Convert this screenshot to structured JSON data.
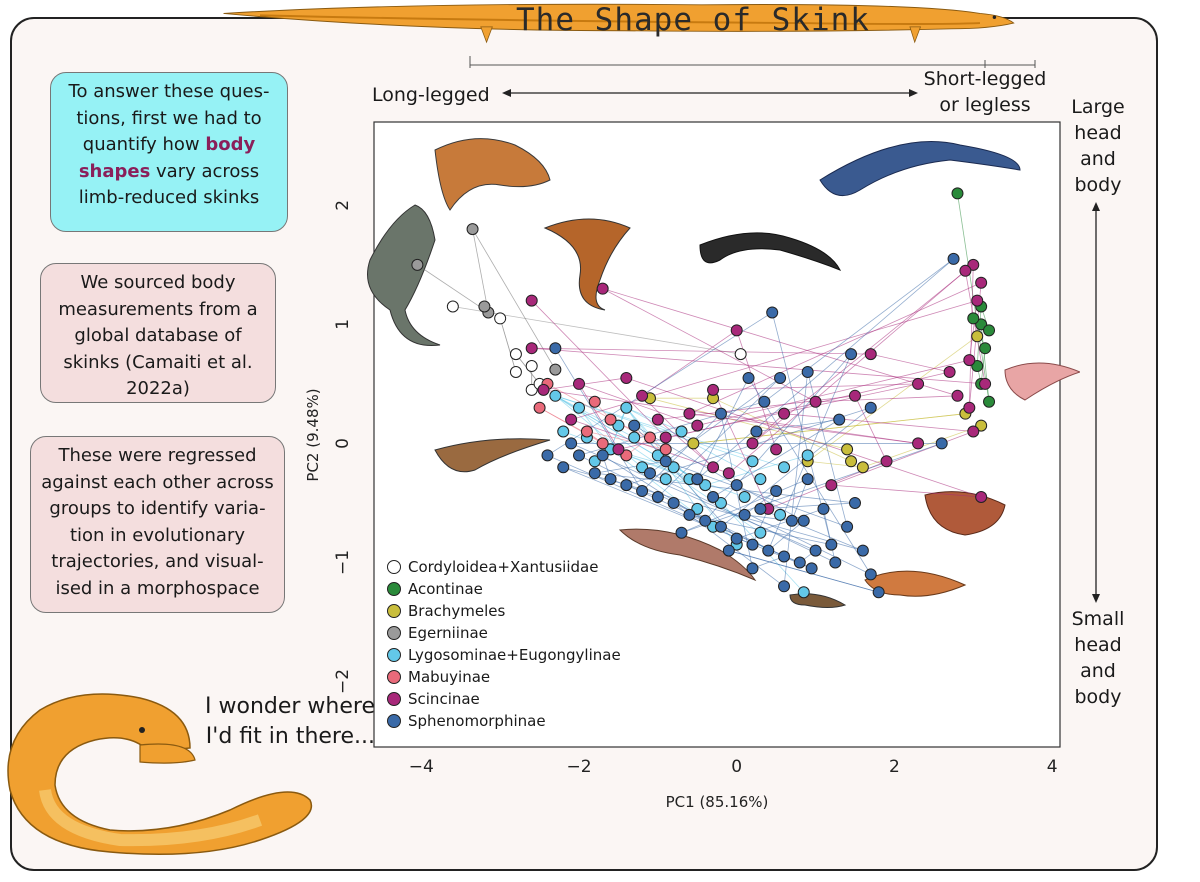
{
  "title": "The Shape of Skink",
  "boxes": {
    "intro_before": "To answer these ques-tions, first we had to quantify how ",
    "intro_highlight": "body shapes",
    "intro_after": " vary across limb-reduced skinks",
    "sourced": "We sourced body measurements from a global database of skinks (Camaiti et al. 2022a)",
    "regressed": "These were regressed against each other across groups to identify varia-tion in evolutionary trajectories, and visual-ised in a morphospace"
  },
  "labels": {
    "long_legged": "Long-legged",
    "short_legged_1": "Short-legged",
    "short_legged_2": "or legless",
    "large_1": "Large",
    "large_2": "head",
    "large_3": "and",
    "large_4": "body",
    "small_1": "Small",
    "small_2": "head",
    "small_3": "and",
    "small_4": "body",
    "wonder_1": "I wonder where",
    "wonder_2": "I'd fit in there..."
  },
  "colors": {
    "panel_bg": "#fbf6f4",
    "snake_body": "#f0a030",
    "snake_belly": "#f5c060",
    "box_cyan": "#96f2f5",
    "box_pink": "#f4dede",
    "highlight": "#8a1f5a"
  },
  "chart_data": {
    "type": "scatter",
    "title": "",
    "xlabel": "PC1 (85.16%)",
    "ylabel": "PC2 (9.48%)",
    "xlim": [
      -4.6,
      4.1
    ],
    "ylim": [
      -2.55,
      2.7
    ],
    "xticks": [
      -4,
      -2,
      0,
      2,
      4
    ],
    "yticks": [
      -2,
      -1,
      0,
      1,
      2
    ],
    "legend_position": "bottom-left",
    "series": [
      {
        "name": "Cordyloidea+Xantusiidae",
        "color": "#ffffff",
        "points": [
          [
            -3.6,
            1.15
          ],
          [
            -2.8,
            0.75
          ],
          [
            -2.8,
            0.6
          ],
          [
            -2.6,
            0.45
          ],
          [
            -2.6,
            0.65
          ],
          [
            -3.0,
            1.05
          ],
          [
            -2.5,
            0.5
          ],
          [
            0.05,
            0.75
          ]
        ]
      },
      {
        "name": "Acontinae",
        "color": "#2a8a3a",
        "points": [
          [
            2.8,
            2.1
          ],
          [
            3.1,
            1.15
          ],
          [
            3.1,
            1.0
          ],
          [
            3.2,
            0.95
          ],
          [
            3.15,
            0.8
          ],
          [
            3.05,
            0.65
          ],
          [
            3.1,
            0.5
          ],
          [
            3.2,
            0.35
          ],
          [
            3.0,
            1.05
          ]
        ]
      },
      {
        "name": "Brachymeles",
        "color": "#c9be3c",
        "points": [
          [
            3.05,
            0.9
          ],
          [
            -1.1,
            0.38
          ],
          [
            -0.3,
            0.38
          ],
          [
            -0.55,
            0.0
          ],
          [
            1.4,
            -0.05
          ],
          [
            1.45,
            -0.15
          ],
          [
            1.6,
            -0.2
          ],
          [
            0.9,
            -0.15
          ],
          [
            2.9,
            0.25
          ],
          [
            3.1,
            0.15
          ]
        ]
      },
      {
        "name": "Egerniinae",
        "color": "#9a9a9a",
        "points": [
          [
            -4.05,
            1.5
          ],
          [
            -3.35,
            1.8
          ],
          [
            -3.15,
            1.1
          ],
          [
            -3.2,
            1.15
          ],
          [
            -2.3,
            0.62
          ]
        ]
      },
      {
        "name": "Lygosominae+Eugongylinae",
        "color": "#63c8e8",
        "points": [
          [
            -2.3,
            0.4
          ],
          [
            -2.0,
            0.3
          ],
          [
            -1.5,
            0.15
          ],
          [
            -1.3,
            0.05
          ],
          [
            -1.0,
            -0.1
          ],
          [
            -0.8,
            -0.2
          ],
          [
            -0.6,
            -0.3
          ],
          [
            -0.4,
            -0.35
          ],
          [
            -0.2,
            -0.5
          ],
          [
            0.1,
            -0.45
          ],
          [
            0.3,
            -0.3
          ],
          [
            0.6,
            -0.2
          ],
          [
            0.9,
            -0.1
          ],
          [
            -1.8,
            -0.15
          ],
          [
            -1.6,
            -0.05
          ],
          [
            -1.2,
            -0.2
          ],
          [
            -0.9,
            -0.3
          ],
          [
            -0.3,
            -0.7
          ],
          [
            0.0,
            -0.85
          ],
          [
            0.3,
            -0.75
          ],
          [
            0.85,
            -1.25
          ],
          [
            -1.4,
            0.3
          ],
          [
            -0.7,
            0.1
          ],
          [
            0.2,
            -0.15
          ],
          [
            -2.2,
            0.1
          ],
          [
            -1.9,
            0.05
          ],
          [
            -0.5,
            -0.55
          ],
          [
            0.55,
            -0.6
          ]
        ]
      },
      {
        "name": "Mabuyinae",
        "color": "#e96a7a",
        "points": [
          [
            -2.4,
            0.5
          ],
          [
            -2.5,
            0.3
          ],
          [
            -1.9,
            0.1
          ],
          [
            -1.7,
            0.0
          ],
          [
            -1.6,
            0.2
          ],
          [
            -1.4,
            -0.1
          ],
          [
            -1.1,
            0.05
          ],
          [
            -0.9,
            -0.05
          ],
          [
            -1.8,
            0.35
          ]
        ]
      },
      {
        "name": "Scincinae",
        "color": "#a8287a",
        "points": [
          [
            -2.6,
            1.2
          ],
          [
            -1.7,
            1.3
          ],
          [
            -2.6,
            0.8
          ],
          [
            -2.45,
            0.45
          ],
          [
            -2.0,
            0.5
          ],
          [
            -1.4,
            0.55
          ],
          [
            -1.2,
            0.4
          ],
          [
            -0.9,
            0.05
          ],
          [
            -0.6,
            0.25
          ],
          [
            -0.3,
            0.45
          ],
          [
            0.0,
            0.95
          ],
          [
            -0.3,
            -0.2
          ],
          [
            0.2,
            0.0
          ],
          [
            0.6,
            0.25
          ],
          [
            1.0,
            0.35
          ],
          [
            1.5,
            0.4
          ],
          [
            1.7,
            0.75
          ],
          [
            2.3,
            0.5
          ],
          [
            2.7,
            0.6
          ],
          [
            2.95,
            0.3
          ],
          [
            3.0,
            0.1
          ],
          [
            3.15,
            0.5
          ],
          [
            3.1,
            -0.45
          ],
          [
            3.0,
            1.5
          ],
          [
            3.1,
            1.35
          ],
          [
            3.05,
            1.2
          ],
          [
            2.95,
            0.7
          ],
          [
            2.8,
            0.4
          ],
          [
            2.3,
            0.0
          ],
          [
            1.9,
            -0.15
          ],
          [
            1.2,
            -0.35
          ],
          [
            0.4,
            -0.55
          ],
          [
            -0.1,
            -0.25
          ],
          [
            -0.5,
            0.15
          ],
          [
            -1.0,
            0.2
          ],
          [
            -1.5,
            -0.05
          ],
          [
            -2.1,
            0.2
          ],
          [
            2.9,
            1.45
          ],
          [
            0.5,
            -0.05
          ]
        ]
      },
      {
        "name": "Sphenomorphinae",
        "color": "#3a6aa8",
        "points": [
          [
            -2.3,
            0.8
          ],
          [
            -2.4,
            -0.1
          ],
          [
            -2.2,
            -0.2
          ],
          [
            -2.0,
            -0.1
          ],
          [
            -1.8,
            -0.25
          ],
          [
            -1.6,
            -0.3
          ],
          [
            -1.4,
            -0.35
          ],
          [
            -1.2,
            -0.4
          ],
          [
            -1.0,
            -0.45
          ],
          [
            -0.8,
            -0.5
          ],
          [
            -0.6,
            -0.6
          ],
          [
            -0.4,
            -0.65
          ],
          [
            -0.2,
            -0.7
          ],
          [
            0.0,
            -0.8
          ],
          [
            0.2,
            -0.85
          ],
          [
            0.4,
            -0.9
          ],
          [
            0.6,
            -0.95
          ],
          [
            0.8,
            -1.0
          ],
          [
            1.0,
            -0.9
          ],
          [
            1.2,
            -0.85
          ],
          [
            1.4,
            -0.7
          ],
          [
            1.6,
            -0.9
          ],
          [
            1.7,
            -1.1
          ],
          [
            1.8,
            -1.25
          ],
          [
            0.45,
            1.1
          ],
          [
            0.55,
            0.55
          ],
          [
            1.45,
            0.75
          ],
          [
            0.15,
            0.55
          ],
          [
            0.35,
            0.35
          ],
          [
            2.75,
            1.55
          ],
          [
            2.6,
            0.0
          ],
          [
            0.9,
            0.6
          ],
          [
            1.3,
            0.2
          ],
          [
            1.7,
            0.3
          ],
          [
            -1.3,
            0.15
          ],
          [
            -0.9,
            -0.15
          ],
          [
            -0.5,
            -0.3
          ],
          [
            0.0,
            -0.35
          ],
          [
            0.3,
            -0.55
          ],
          [
            0.7,
            -0.65
          ],
          [
            1.1,
            -0.55
          ],
          [
            1.5,
            -0.5
          ],
          [
            -1.7,
            -0.1
          ],
          [
            -2.1,
            0.0
          ],
          [
            -1.1,
            -0.25
          ],
          [
            -0.3,
            -0.45
          ],
          [
            0.1,
            -0.6
          ],
          [
            0.5,
            -0.4
          ],
          [
            0.9,
            -0.3
          ],
          [
            0.95,
            -1.05
          ],
          [
            0.6,
            -1.2
          ],
          [
            0.2,
            -1.05
          ],
          [
            -0.1,
            -0.9
          ],
          [
            -0.7,
            -0.75
          ],
          [
            0.85,
            -0.65
          ],
          [
            1.25,
            -1.0
          ],
          [
            -0.2,
            0.25
          ],
          [
            0.25,
            0.1
          ]
        ]
      }
    ]
  }
}
